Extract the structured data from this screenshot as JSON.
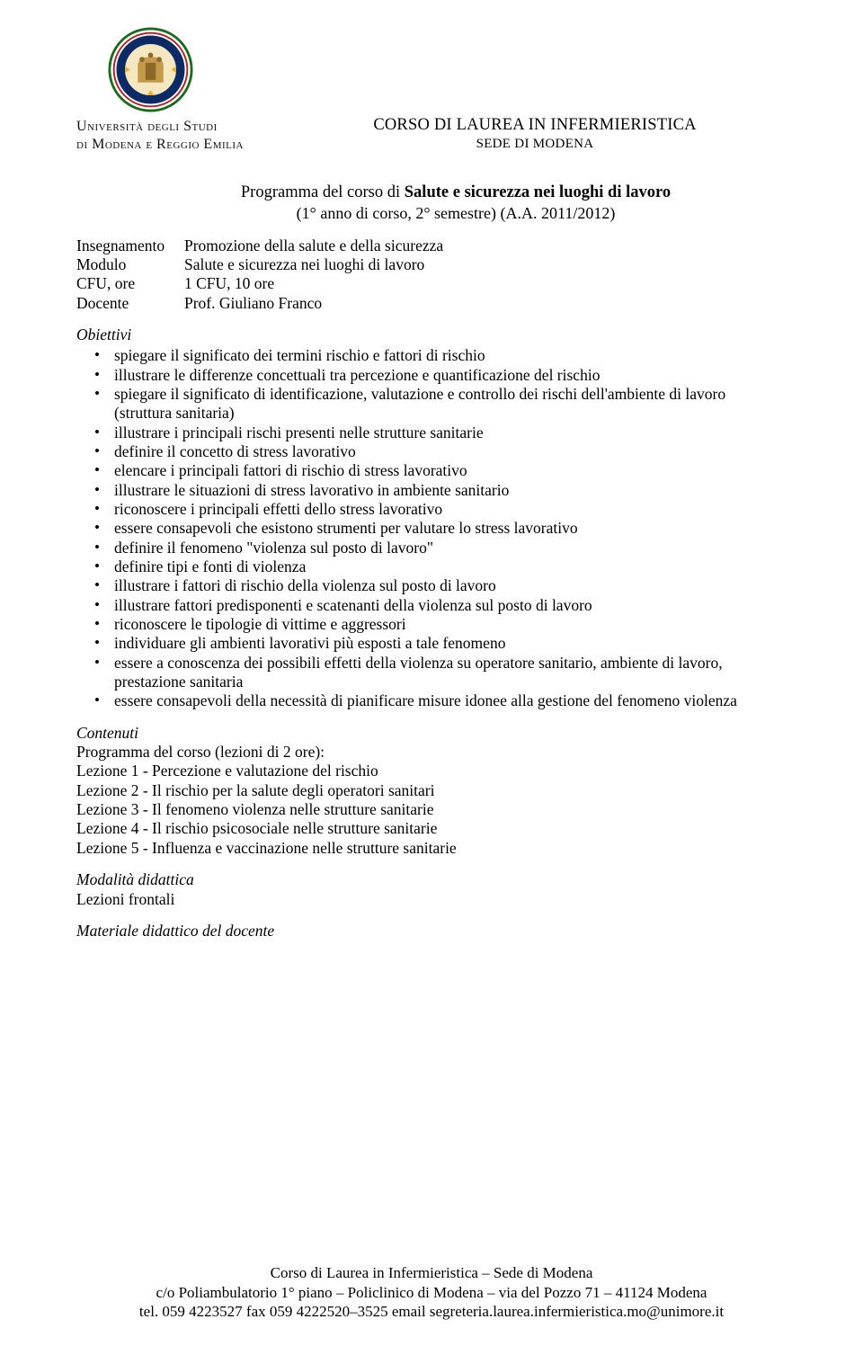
{
  "university": {
    "line1": "Università degli Studi",
    "line2": "di Modena e Reggio Emilia"
  },
  "header_right": {
    "line1": "CORSO DI LAUREA IN INFERMIERISTICA",
    "line2": "SEDE DI MODENA"
  },
  "title": {
    "prefix": "Programma del corso di ",
    "bold": "Salute e sicurezza nei luoghi di lavoro",
    "sub": "(1° anno di corso, 2° semestre) (A.A. 2011/2012)"
  },
  "meta": {
    "rows": [
      {
        "label": "Insegnamento",
        "value": "Promozione della salute e della sicurezza"
      },
      {
        "label": "Modulo",
        "value": "Salute e sicurezza nei luoghi di lavoro"
      },
      {
        "label": "CFU, ore",
        "value": "1 CFU, 10 ore"
      },
      {
        "label": "Docente",
        "value": "Prof. Giuliano Franco"
      }
    ]
  },
  "obiettivi": {
    "heading": "Obiettivi",
    "items": [
      "spiegare il significato dei termini rischio e fattori di rischio",
      "illustrare le differenze concettuali tra percezione e quantificazione del rischio",
      "spiegare il significato di identificazione, valutazione e controllo dei rischi dell'ambiente di lavoro (struttura sanitaria)",
      "illustrare i principali rischi presenti nelle strutture sanitarie",
      "definire il concetto di stress lavorativo",
      "elencare i principali fattori di rischio di stress lavorativo",
      "illustrare le situazioni di stress lavorativo in ambiente sanitario",
      "riconoscere i principali effetti dello stress lavorativo",
      "essere consapevoli che esistono strumenti per valutare lo stress lavorativo",
      "definire il fenomeno \"violenza sul posto di lavoro\"",
      "definire tipi e fonti di violenza",
      "illustrare i fattori di rischio della violenza sul posto di lavoro",
      "illustrare fattori predisponenti e scatenanti della violenza sul posto di lavoro",
      "riconoscere le tipologie di vittime e aggressori",
      "individuare gli ambienti lavorativi più esposti a tale fenomeno",
      "essere a conoscenza dei possibili effetti della violenza su operatore sanitario, ambiente di lavoro, prestazione sanitaria",
      "essere consapevoli della necessità di pianificare misure idonee alla gestione del fenomeno violenza"
    ]
  },
  "contenuti": {
    "heading": "Contenuti",
    "lines": [
      "Programma del corso (lezioni di 2 ore):",
      "Lezione 1 - Percezione e valutazione del rischio",
      "Lezione 2 - Il rischio per la salute degli operatori sanitari",
      "Lezione 3 - Il fenomeno violenza nelle strutture sanitarie",
      "Lezione 4 - Il rischio psicosociale nelle strutture sanitarie",
      "Lezione 5 - Influenza e vaccinazione nelle strutture sanitarie"
    ]
  },
  "modalita": {
    "heading": "Modalità didattica",
    "text": "Lezioni frontali"
  },
  "materiale": {
    "heading": "Materiale didattico del docente"
  },
  "footer": {
    "line1": "Corso di Laurea in Infermieristica – Sede di Modena",
    "line2": "c/o Poliambulatorio 1° piano – Policlinico di Modena – via del Pozzo 71 – 41124 Modena",
    "line3": "tel. 059 4223527 fax 059 4222520–3525 email segreteria.laurea.infermieristica.mo@unimore.it"
  },
  "seal": {
    "outer_stroke": "#1b6b1f",
    "outer_stroke2": "#b02020",
    "band_fill": "#0b2a66",
    "inner_bg": "#f5e8c0",
    "figure_fill": "#c49a4a",
    "corner_fill": "#e8b030"
  }
}
